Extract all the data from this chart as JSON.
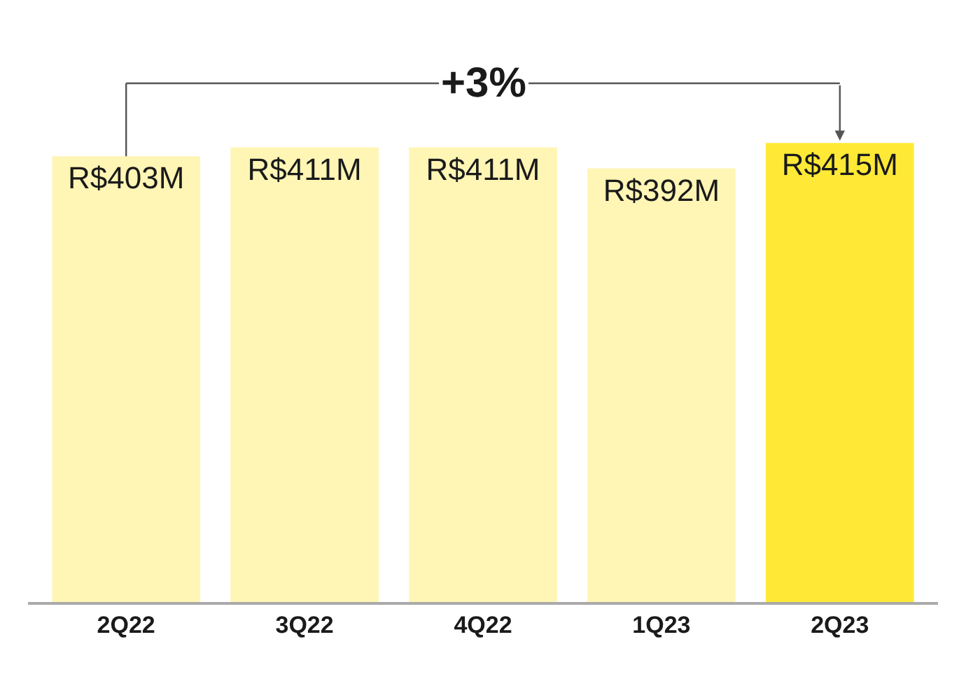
{
  "chart_data": {
    "type": "bar",
    "categories": [
      "2Q22",
      "3Q22",
      "4Q22",
      "1Q23",
      "2Q23"
    ],
    "values": [
      403000000,
      411000000,
      411000000,
      392000000,
      415000000
    ],
    "value_labels": [
      "R$403M",
      "R$411M",
      "R$411M",
      "R$392M",
      "R$415M"
    ],
    "colors": [
      "#fff5b5",
      "#fff5b5",
      "#fff5b5",
      "#fff5b5",
      "#ffe936"
    ],
    "annotations": [
      "+3%"
    ],
    "legend": false
  }
}
